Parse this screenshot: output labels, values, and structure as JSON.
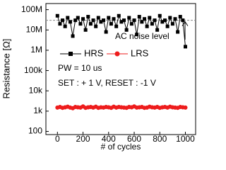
{
  "chart_data": {
    "type": "line",
    "xlabel": "# of cycles",
    "ylabel": "Resistance [Ω]",
    "log_y": true,
    "xlim": [
      -90,
      1080
    ],
    "ylim": [
      70,
      200000000
    ],
    "xticks": [
      0,
      200,
      400,
      600,
      800,
      1000
    ],
    "yticks": [
      100,
      {
        "value": 1000,
        "label": "1k"
      },
      {
        "value": 10000,
        "label": "10k"
      },
      {
        "value": 100000,
        "label": "100k"
      },
      {
        "value": 1000000,
        "label": "1M"
      },
      {
        "value": 10000000,
        "label": "10M"
      },
      {
        "value": 100000000,
        "label": "100M"
      }
    ],
    "x": [
      0,
      20,
      40,
      60,
      80,
      100,
      120,
      140,
      160,
      180,
      200,
      220,
      240,
      260,
      280,
      300,
      320,
      340,
      360,
      380,
      400,
      420,
      440,
      460,
      480,
      500,
      520,
      540,
      560,
      580,
      600,
      620,
      640,
      660,
      680,
      700,
      720,
      740,
      760,
      780,
      800,
      820,
      840,
      860,
      880,
      900,
      920,
      940,
      960,
      980,
      1000
    ],
    "series": [
      {
        "name": "HRS",
        "color": "#000000",
        "marker": "square",
        "values": [
          50000000,
          20000000,
          30000000,
          15000000,
          40000000,
          25000000,
          5000000,
          30000000,
          40000000,
          20000000,
          35000000,
          10000000,
          45000000,
          20000000,
          30000000,
          15000000,
          40000000,
          25000000,
          30000000,
          8000000,
          40000000,
          20000000,
          35000000,
          15000000,
          50000000,
          25000000,
          30000000,
          10000000,
          40000000,
          20000000,
          30000000,
          6000000,
          45000000,
          25000000,
          35000000,
          15000000,
          40000000,
          20000000,
          30000000,
          10000000,
          50000000,
          25000000,
          30000000,
          15000000,
          40000000,
          20000000,
          35000000,
          8000000,
          45000000,
          30000000,
          1500000
        ]
      },
      {
        "name": "LRS",
        "color": "#ee1c1c",
        "marker": "circle",
        "values": [
          1500,
          1600,
          1450,
          1550,
          1650,
          1500,
          1400,
          1600,
          1550,
          1500,
          1700,
          1450,
          1550,
          1600,
          1500,
          1650,
          1450,
          1550,
          1500,
          1600,
          1550,
          1450,
          1650,
          1500,
          1600,
          1550,
          1500,
          1450,
          1600,
          1550,
          1700,
          1500,
          1550,
          1600,
          1450,
          1500,
          1650,
          1550,
          1500,
          1600,
          1450,
          1550,
          1600,
          1500,
          1650,
          1550,
          1500,
          1450,
          1600,
          1550,
          1500
        ]
      }
    ],
    "noise_level": 30000000,
    "noise_label": "AC noise level",
    "annotations": [
      "PW = 10 us",
      "SET : + 1 V, RESET : -1 V"
    ],
    "legend": "upper left"
  }
}
